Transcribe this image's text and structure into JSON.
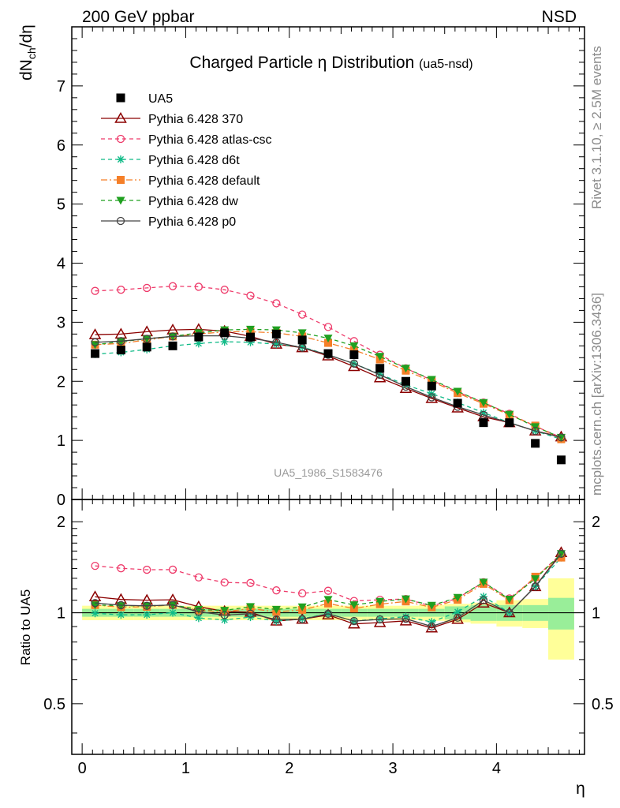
{
  "header": {
    "left": "200 GeV ppbar",
    "right": "NSD"
  },
  "side_labels": {
    "rivet": "Rivet 3.1.10, ≥ 2.5M events",
    "mcplots": "mcplots.cern.ch [arXiv:1306.3436]"
  },
  "chart_data": {
    "type": "scatter",
    "title": "Charged Particle",
    "title_eta": "η",
    "title_rest": "Distribution",
    "title_sub": "(ua5-nsd)",
    "watermark": "UA5_1986_S1583476",
    "xlabel": "η",
    "ylabel": {
      "base": "dN",
      "sub": "ch",
      "tail": "/dη"
    },
    "ratio_ylabel": "Ratio to UA5",
    "xlim": [
      -0.1,
      4.85
    ],
    "ylim": [
      0,
      8
    ],
    "ratio_ylim": [
      0.34,
      2.37
    ],
    "x_ticks": [
      "0",
      "1",
      "2",
      "3",
      "4"
    ],
    "y_ticks": [
      "0",
      "1",
      "2",
      "3",
      "4",
      "5",
      "6",
      "7"
    ],
    "ratio_y_ticks": [
      "0.5",
      "1",
      "2"
    ],
    "legend_position": "top-left",
    "x": [
      0.125,
      0.375,
      0.625,
      0.875,
      1.125,
      1.375,
      1.625,
      1.875,
      2.125,
      2.375,
      2.625,
      2.875,
      3.125,
      3.375,
      3.625,
      3.875,
      4.125,
      4.375,
      4.625
    ],
    "data": {
      "name": "UA5",
      "values": [
        2.47,
        2.53,
        2.58,
        2.6,
        2.75,
        2.82,
        2.75,
        2.8,
        2.7,
        2.47,
        2.45,
        2.22,
        2.0,
        1.92,
        1.63,
        1.3,
        1.3,
        0.95,
        0.67
      ],
      "band_x": [
        0.0,
        0.25,
        0.5,
        0.75,
        1.0,
        1.25,
        1.5,
        1.75,
        2.0,
        2.25,
        2.5,
        2.75,
        3.0,
        3.25,
        3.5,
        3.75,
        4.0,
        4.25,
        4.5,
        4.75
      ],
      "band_inner": [
        0.03,
        0.03,
        0.03,
        0.03,
        0.03,
        0.03,
        0.03,
        0.03,
        0.03,
        0.03,
        0.03,
        0.03,
        0.03,
        0.03,
        0.05,
        0.06,
        0.06,
        0.06,
        0.12
      ],
      "band_outer": [
        0.055,
        0.055,
        0.055,
        0.055,
        0.055,
        0.055,
        0.055,
        0.055,
        0.055,
        0.055,
        0.055,
        0.055,
        0.055,
        0.06,
        0.07,
        0.08,
        0.1,
        0.11,
        0.3
      ]
    },
    "series": [
      {
        "name": "Pythia 6.428 370",
        "color": "#8b0000",
        "style": "solid",
        "marker": "triangle-open",
        "values": [
          2.79,
          2.8,
          2.84,
          2.87,
          2.88,
          2.85,
          2.76,
          2.63,
          2.57,
          2.43,
          2.25,
          2.06,
          1.88,
          1.71,
          1.55,
          1.4,
          1.3,
          1.16,
          1.06
        ]
      },
      {
        "name": "Pythia 6.428 atlas-csc",
        "color": "#ee3a6a",
        "style": "dashed",
        "marker": "circle-open",
        "values": [
          3.53,
          3.55,
          3.58,
          3.61,
          3.6,
          3.55,
          3.45,
          3.32,
          3.13,
          2.92,
          2.68,
          2.45,
          2.22,
          2.02,
          1.82,
          1.64,
          1.45,
          1.24,
          1.05
        ]
      },
      {
        "name": "Pythia 6.428 d6t",
        "color": "#11bb88",
        "style": "dashed",
        "marker": "star",
        "values": [
          2.46,
          2.49,
          2.54,
          2.6,
          2.64,
          2.67,
          2.66,
          2.63,
          2.58,
          2.45,
          2.3,
          2.12,
          1.94,
          1.79,
          1.64,
          1.47,
          1.3,
          1.16,
          1.02
        ]
      },
      {
        "name": "Pythia 6.428 default",
        "color": "#f57f28",
        "style": "dashdot",
        "marker": "square",
        "values": [
          2.62,
          2.64,
          2.7,
          2.76,
          2.8,
          2.84,
          2.84,
          2.82,
          2.76,
          2.65,
          2.53,
          2.37,
          2.18,
          2.0,
          1.8,
          1.62,
          1.43,
          1.25,
          1.02
        ]
      },
      {
        "name": "Pythia 6.428 dw",
        "color": "#20a020",
        "style": "dashed",
        "marker": "triangle-down",
        "values": [
          2.62,
          2.67,
          2.72,
          2.76,
          2.82,
          2.87,
          2.88,
          2.87,
          2.82,
          2.73,
          2.6,
          2.42,
          2.22,
          2.03,
          1.83,
          1.64,
          1.44,
          1.23,
          1.05
        ]
      },
      {
        "name": "Pythia 6.428 p0",
        "color": "#444444",
        "style": "solid",
        "marker": "circle-open",
        "values": [
          2.66,
          2.68,
          2.72,
          2.76,
          2.77,
          2.77,
          2.73,
          2.66,
          2.57,
          2.45,
          2.3,
          2.11,
          1.91,
          1.73,
          1.57,
          1.43,
          1.3,
          1.16,
          1.05
        ]
      }
    ]
  }
}
